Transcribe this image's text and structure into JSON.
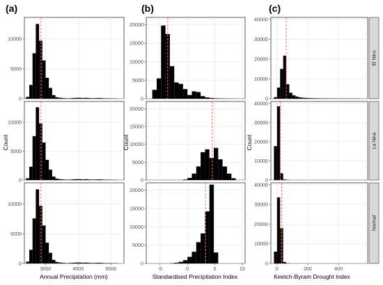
{
  "figure": {
    "row_labels": [
      "El Nino",
      "La Nina",
      "Normal"
    ],
    "y_label": "Count"
  },
  "chart_data": [
    {
      "type": "bar",
      "panel_tag": "(a)",
      "xlabel": "Annual Precipitation (mm)",
      "ylabel": "Count",
      "xlim": [
        2350,
        5400
      ],
      "x_ticks": [
        3000,
        4000,
        5000
      ],
      "bin_width": 100,
      "rows": [
        {
          "row": "El Nino",
          "ylim": [
            0,
            13600
          ],
          "y_ticks": [
            0,
            5000,
            10000
          ],
          "mean": 2860,
          "bin_starts": [
            2400,
            2500,
            2600,
            2700,
            2800,
            2900,
            3000,
            3100,
            3200,
            3300,
            3400,
            3500,
            3600,
            3700,
            3800,
            3900,
            4000,
            4100,
            4200,
            4300,
            4400,
            4500,
            4600,
            4700,
            4800,
            4900,
            5000,
            5100
          ],
          "counts": [
            300,
            2300,
            7600,
            12500,
            9700,
            6400,
            3500,
            1800,
            600,
            250,
            150,
            100,
            60,
            80,
            120,
            150,
            150,
            120,
            150,
            100,
            80,
            100,
            120,
            80,
            60,
            60,
            40,
            40
          ]
        },
        {
          "row": "La Nina",
          "ylim": [
            0,
            13600
          ],
          "y_ticks": [
            0,
            5000,
            10000
          ],
          "mean": 2860,
          "bin_starts": [
            2400,
            2500,
            2600,
            2700,
            2800,
            2900,
            3000,
            3100,
            3200,
            3300,
            3400,
            3500,
            3600,
            3700,
            3800,
            3900,
            4000,
            4100,
            4200,
            4300,
            4400,
            4500,
            4600,
            4700,
            4800,
            4900,
            5000,
            5100
          ],
          "counts": [
            300,
            2300,
            7600,
            12600,
            9800,
            6500,
            3500,
            1800,
            600,
            250,
            150,
            100,
            60,
            80,
            120,
            150,
            150,
            120,
            150,
            100,
            80,
            100,
            120,
            80,
            60,
            60,
            40,
            40
          ]
        },
        {
          "row": "Normal",
          "ylim": [
            0,
            13600
          ],
          "y_ticks": [
            0,
            5000,
            10000
          ],
          "mean": 2860,
          "bin_starts": [
            2400,
            2500,
            2600,
            2700,
            2800,
            2900,
            3000,
            3100,
            3200,
            3300,
            3400,
            3500,
            3600,
            3700,
            3800,
            3900,
            4000,
            4100,
            4200,
            4300,
            4400,
            4500,
            4600,
            4700,
            4800,
            4900,
            5000,
            5100
          ],
          "counts": [
            300,
            2300,
            7600,
            12500,
            9700,
            6400,
            3500,
            1800,
            600,
            250,
            150,
            100,
            60,
            80,
            120,
            150,
            150,
            120,
            150,
            100,
            80,
            100,
            120,
            80,
            60,
            60,
            40,
            40
          ]
        }
      ]
    },
    {
      "type": "bar",
      "panel_tag": "(b)",
      "xlabel": "Standardised Precipitation Index",
      "ylabel": "Count",
      "xlim": [
        -7.5,
        10.5
      ],
      "x_ticks": [
        -5,
        0,
        5,
        10
      ],
      "bin_width": 0.8,
      "rows": [
        {
          "row": "El Nino",
          "ylim": [
            0,
            22000
          ],
          "y_ticks": [
            0,
            5000,
            10000,
            15000,
            20000
          ],
          "mean": -3.6,
          "bin_starts": [
            -6.4,
            -5.6,
            -4.8,
            -4.0,
            -3.2,
            -2.4,
            -1.6,
            -0.8,
            0.0,
            0.8,
            1.6,
            2.4,
            3.2,
            4.0,
            4.8,
            5.6,
            6.4,
            7.2,
            8.0
          ],
          "counts": [
            2400,
            5500,
            19800,
            17500,
            8800,
            4400,
            4000,
            2600,
            1000,
            2000,
            1800,
            700,
            350,
            200,
            120,
            80,
            60,
            40,
            30
          ]
        },
        {
          "row": "La Nina",
          "ylim": [
            0,
            22000
          ],
          "y_ticks": [
            0,
            5000,
            10000,
            15000,
            20000
          ],
          "mean": 4.5,
          "bin_starts": [
            -0.8,
            0.0,
            0.8,
            1.6,
            2.4,
            3.2,
            4.0,
            4.8,
            5.6,
            6.4,
            7.2,
            8.0
          ],
          "counts": [
            150,
            600,
            1800,
            3800,
            7800,
            8600,
            6200,
            9000,
            5800,
            3800,
            1800,
            500
          ]
        },
        {
          "row": "Normal",
          "ylim": [
            0,
            22000
          ],
          "y_ticks": [
            0,
            5000,
            10000,
            15000,
            20000
          ],
          "mean": 3.3,
          "bin_starts": [
            -3.2,
            -2.4,
            -1.6,
            -0.8,
            0.0,
            0.8,
            1.6,
            2.4,
            3.2,
            4.0,
            4.8
          ],
          "counts": [
            80,
            200,
            450,
            900,
            1800,
            3200,
            5800,
            8200,
            14200,
            21500,
            3000
          ]
        }
      ]
    },
    {
      "type": "bar",
      "panel_tag": "(c)",
      "xlabel": "Keetch-Byram Drought Index",
      "ylabel": "Count",
      "xlim": [
        -40,
        590
      ],
      "x_ticks": [
        0,
        200,
        400
      ],
      "bin_width": 20,
      "rows": [
        {
          "row": "El Nino",
          "ylim": [
            0,
            41000
          ],
          "y_ticks": [
            0,
            10000,
            20000,
            30000,
            40000
          ],
          "mean": 60,
          "bin_starts": [
            -20,
            0,
            20,
            40,
            60,
            80,
            100,
            120,
            140,
            160,
            180,
            200,
            220,
            240,
            260,
            280,
            300,
            320,
            340,
            360,
            380,
            400,
            420,
            440,
            460,
            480,
            500,
            520
          ],
          "counts": [
            800,
            5600,
            15000,
            21700,
            7300,
            3000,
            1700,
            1100,
            700,
            500,
            400,
            300,
            250,
            220,
            200,
            180,
            150,
            150,
            130,
            120,
            110,
            100,
            100,
            100,
            100,
            100,
            100,
            100
          ]
        },
        {
          "row": "La Nina",
          "ylim": [
            0,
            41000
          ],
          "y_ticks": [
            0,
            10000,
            20000,
            30000,
            40000
          ],
          "mean": 22,
          "bin_starts": [
            -20,
            0,
            20,
            40,
            60
          ],
          "counts": [
            17700,
            38500,
            3500,
            300,
            80
          ]
        },
        {
          "row": "Normal",
          "ylim": [
            0,
            41000
          ],
          "y_ticks": [
            0,
            10000,
            20000,
            30000,
            40000
          ],
          "mean": 30,
          "bin_starts": [
            -20,
            0,
            20,
            40,
            60
          ],
          "counts": [
            6000,
            33600,
            18000,
            700,
            100
          ]
        }
      ]
    }
  ]
}
